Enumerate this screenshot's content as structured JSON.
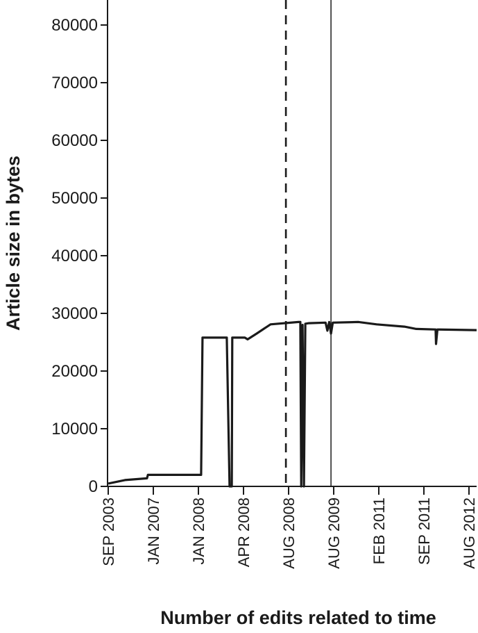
{
  "chart_data": {
    "type": "line",
    "title": "",
    "xlabel": "Number of edits related to time",
    "ylabel": "Article size in bytes",
    "ylim": [
      0,
      80000
    ],
    "yticks": [
      0,
      10000,
      20000,
      30000,
      40000,
      50000,
      60000,
      70000,
      80000
    ],
    "xticks": [
      "SEP 2003",
      "JAN 2007",
      "JAN 2008",
      "APR 2008",
      "AUG 2008",
      "AUG 2009",
      "FEB 2011",
      "SEP 2011",
      "AUG 2012"
    ],
    "grid": false,
    "line_color": "#1a1a1a",
    "vertical_markers": [
      {
        "style": "dashed",
        "x": 3.94
      },
      {
        "style": "solid",
        "x": 4.94
      }
    ],
    "series": [
      {
        "x": [
          0,
          0.37,
          0.86,
          0.88,
          2.06,
          2.09,
          2.63,
          2.69,
          2.74,
          2.75,
          3.03,
          3.09,
          3.29,
          3.6,
          4.22,
          4.26,
          4.28,
          4.31,
          4.34,
          4.37,
          4.45,
          4.82,
          4.86,
          4.9,
          4.94,
          4.98,
          5.55,
          5.95,
          6.57,
          6.83,
          7.26,
          7.27,
          7.3,
          8.17
        ],
        "y": [
          500,
          1100,
          1400,
          2000,
          2000,
          25800,
          25800,
          0,
          0,
          25800,
          25800,
          25500,
          26500,
          28100,
          28500,
          28500,
          0,
          28000,
          0,
          28200,
          28300,
          28400,
          27000,
          28500,
          26500,
          28400,
          28500,
          28100,
          27700,
          27300,
          27200,
          24700,
          27200,
          27100
        ]
      }
    ]
  }
}
